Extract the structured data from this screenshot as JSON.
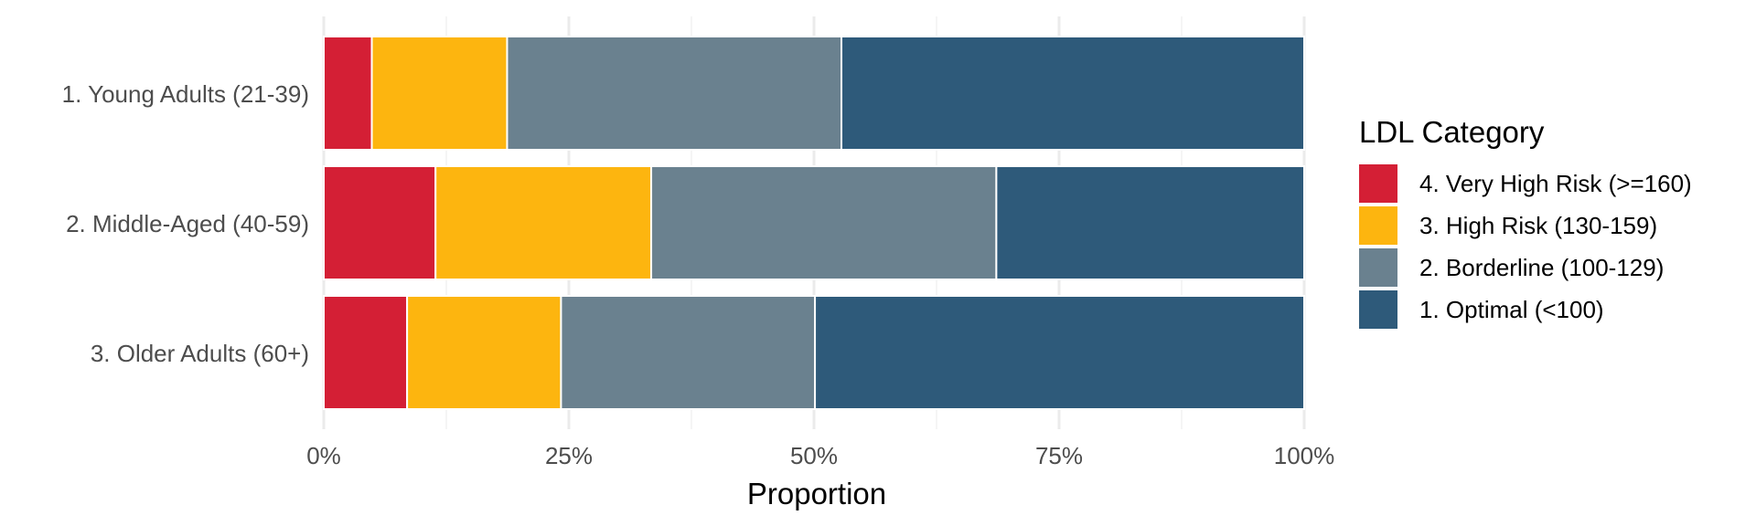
{
  "chart_data": {
    "type": "bar",
    "orientation": "horizontal",
    "stacked": true,
    "xlabel": "Proportion",
    "ylabel": "",
    "xlim": [
      0,
      1
    ],
    "x_ticks": [
      0,
      0.25,
      0.5,
      0.75,
      1
    ],
    "x_tick_labels": [
      "0%",
      "25%",
      "50%",
      "75%",
      "100%"
    ],
    "grid": true,
    "categories": [
      "1. Young Adults (21-39)",
      "2. Middle-Aged (40-59)",
      "3. Older Adults (60+)"
    ],
    "series": [
      {
        "name": "4. Very High Risk (>=160)",
        "color": "#D41F35",
        "values": [
          0.049,
          0.114,
          0.085
        ]
      },
      {
        "name": "3. High Risk (130-159)",
        "color": "#FDB50F",
        "values": [
          0.138,
          0.22,
          0.157
        ]
      },
      {
        "name": "2. Borderline (100-129)",
        "color": "#6A818F",
        "values": [
          0.341,
          0.352,
          0.259
        ]
      },
      {
        "name": "1. Optimal (<100)",
        "color": "#2E5A7A",
        "values": [
          0.472,
          0.314,
          0.499
        ]
      }
    ],
    "legend": {
      "title": "LDL Category",
      "position": "right",
      "order": [
        0,
        1,
        2,
        3
      ]
    }
  }
}
